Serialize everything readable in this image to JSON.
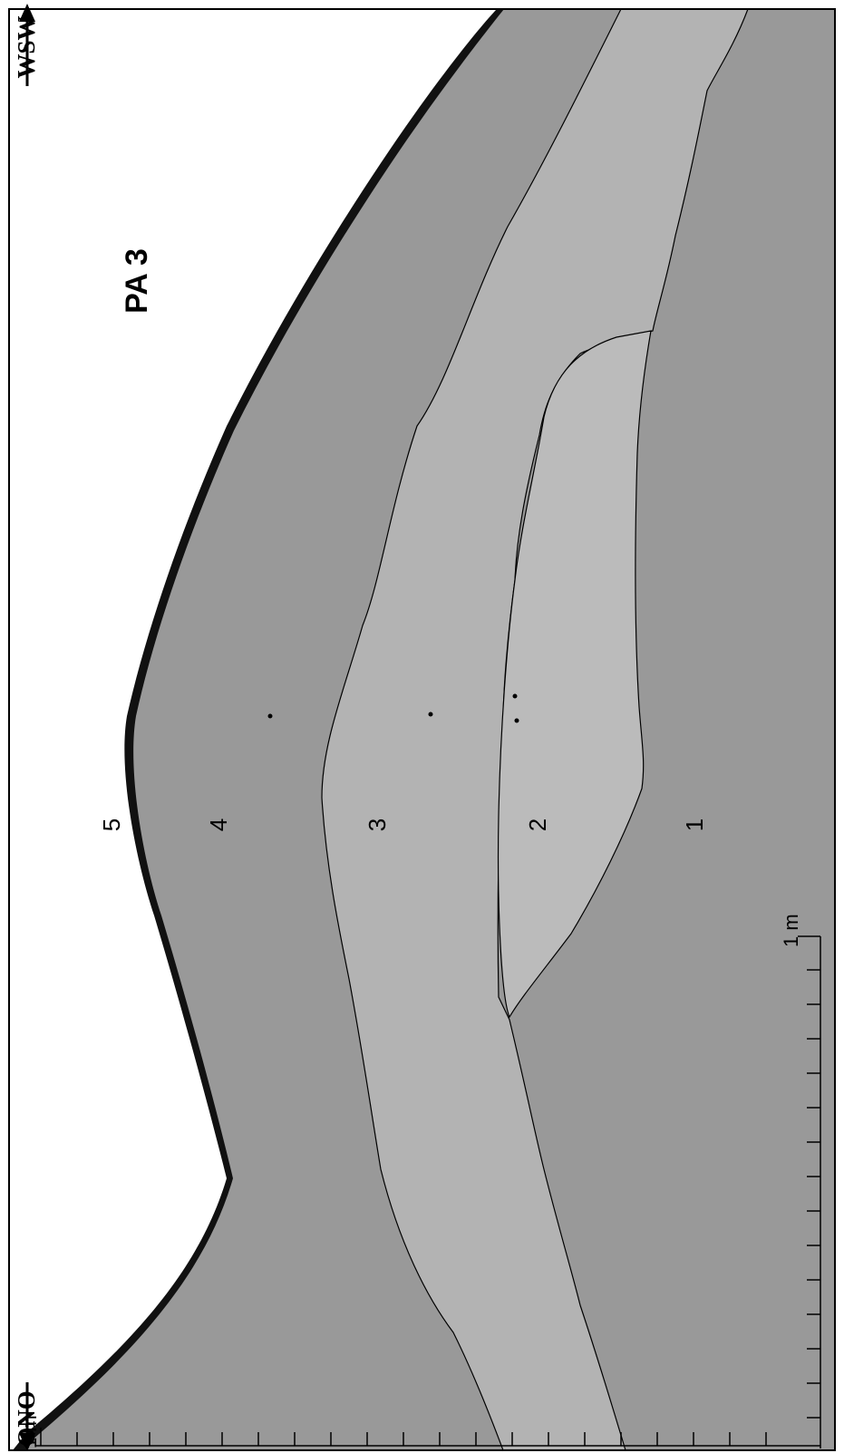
{
  "orientation": {
    "west": "WSW",
    "east": "ONO"
  },
  "title": "PA 3",
  "layers": [
    "5",
    "4",
    "3",
    "2",
    "1"
  ],
  "scales": {
    "vertical": "1 m",
    "horizontal": "1 m"
  }
}
